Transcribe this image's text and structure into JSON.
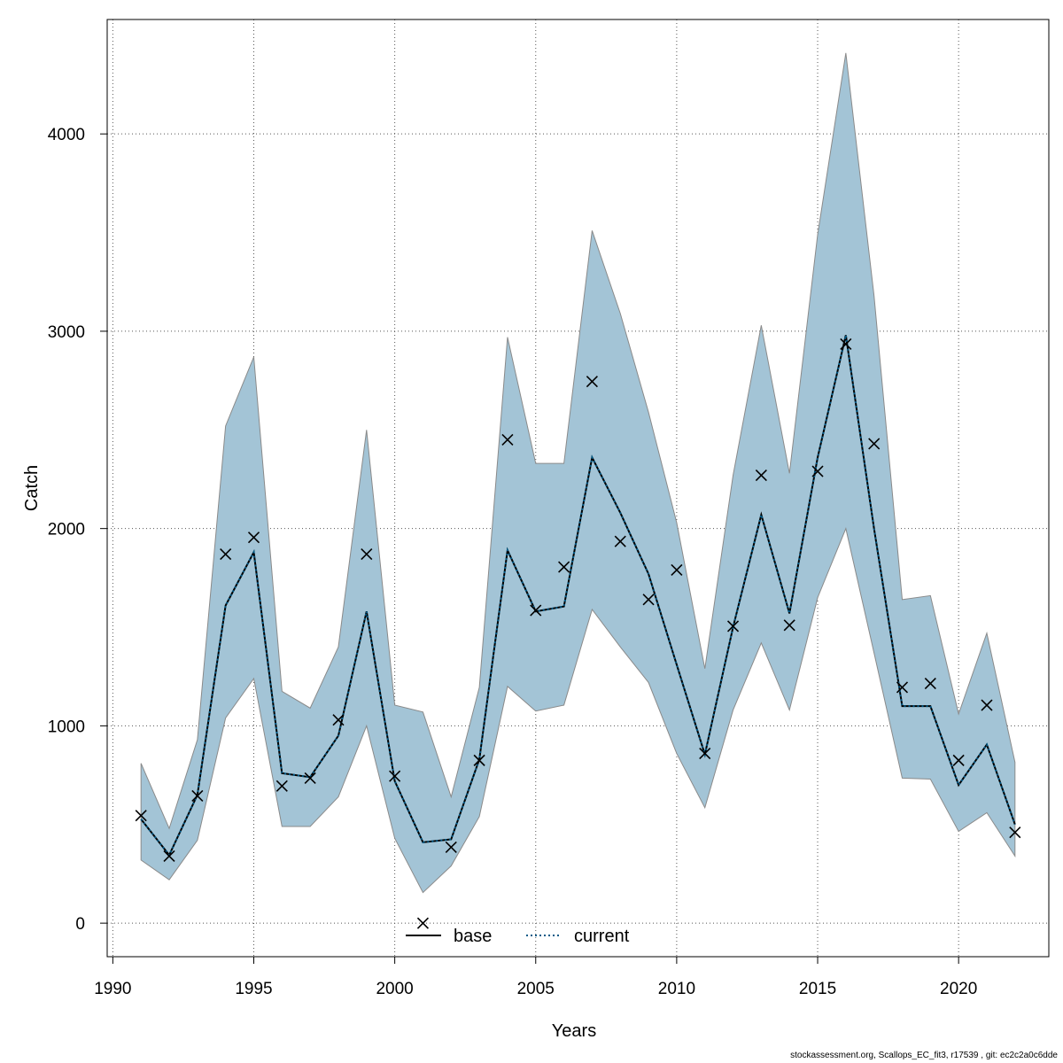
{
  "chart_data": {
    "type": "line",
    "xlabel": "Years",
    "ylabel": "Catch",
    "xlim": [
      1989.8,
      2023.2
    ],
    "ylim": [
      -170,
      4580
    ],
    "x_ticks": [
      1990,
      1995,
      2000,
      2005,
      2010,
      2015,
      2020
    ],
    "y_ticks": [
      0,
      1000,
      2000,
      3000,
      4000
    ],
    "grid": true,
    "legend_position": "bottom-center",
    "x": [
      1991,
      1992,
      1993,
      1994,
      1995,
      1996,
      1997,
      1998,
      1999,
      2000,
      2001,
      2002,
      2003,
      2004,
      2005,
      2006,
      2007,
      2008,
      2009,
      2010,
      2011,
      2012,
      2013,
      2014,
      2015,
      2016,
      2017,
      2018,
      2019,
      2020,
      2021,
      2022
    ],
    "series": [
      {
        "name": "base",
        "style": "solid",
        "color": "#000000",
        "values": [
          527,
          345,
          650,
          1610,
          1880,
          760,
          740,
          950,
          1580,
          720,
          410,
          425,
          830,
          1890,
          1580,
          1605,
          2360,
          2080,
          1770,
          1310,
          855,
          1500,
          2070,
          1570,
          2360,
          2980,
          2000,
          1100,
          1100,
          700,
          905,
          500
        ]
      },
      {
        "name": "current",
        "style": "dotted",
        "color": "#005a87",
        "values": [
          527,
          345,
          650,
          1610,
          1880,
          760,
          740,
          950,
          1580,
          720,
          410,
          425,
          830,
          1890,
          1580,
          1605,
          2360,
          2080,
          1770,
          1310,
          855,
          1500,
          2070,
          1570,
          2360,
          2980,
          2000,
          1100,
          1100,
          700,
          905,
          500
        ]
      }
    ],
    "confidence_band": {
      "color": "#a3c4d6",
      "stroke": "#8a8a8a",
      "lower": [
        320,
        220,
        420,
        1040,
        1240,
        490,
        490,
        640,
        1000,
        430,
        155,
        290,
        540,
        1200,
        1075,
        1105,
        1590,
        1400,
        1220,
        860,
        585,
        1080,
        1420,
        1080,
        1650,
        2000,
        1370,
        735,
        730,
        465,
        560,
        340
      ],
      "upper": [
        810,
        480,
        930,
        2520,
        2870,
        1175,
        1090,
        1400,
        2500,
        1105,
        1070,
        640,
        1195,
        2970,
        2330,
        2330,
        3510,
        3090,
        2590,
        2030,
        1290,
        2270,
        3030,
        2280,
        3490,
        4410,
        3180,
        1640,
        1660,
        1060,
        1470,
        815
      ]
    },
    "observed": {
      "marker": "x",
      "x": [
        1991,
        1992,
        1993,
        1994,
        1995,
        1996,
        1997,
        1998,
        1999,
        2000,
        2001,
        2002,
        2003,
        2004,
        2005,
        2006,
        2007,
        2008,
        2009,
        2010,
        2011,
        2012,
        2013,
        2014,
        2015,
        2016,
        2017,
        2018,
        2019,
        2020,
        2021,
        2022
      ],
      "values": [
        545,
        340,
        645,
        1870,
        1955,
        695,
        735,
        1030,
        1870,
        745,
        0,
        385,
        825,
        2450,
        1585,
        1805,
        2745,
        1935,
        1640,
        1790,
        860,
        1505,
        2270,
        1510,
        2290,
        2935,
        2430,
        1195,
        1215,
        825,
        1105,
        460
      ]
    }
  },
  "footer": {
    "note": "stockassessment.org, Scallops_EC_fit3, r17539 , git: ec2c2a0c6dde"
  }
}
